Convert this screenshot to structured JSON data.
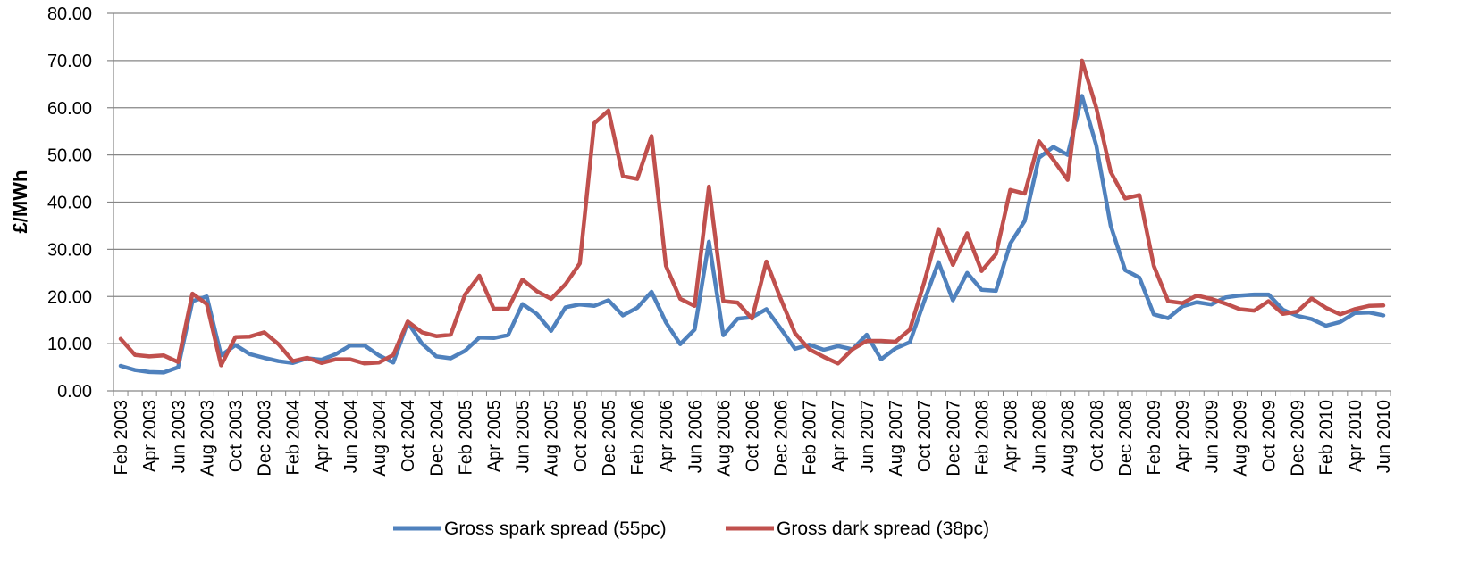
{
  "colors": {
    "spark": "#4f81bd",
    "dark": "#c0504d",
    "grid": "#868686",
    "axis": "#868686"
  },
  "chart_data": {
    "type": "line",
    "ylabel": "£/MWh",
    "ylim": [
      0,
      80
    ],
    "y_ticks": [
      "0.00",
      "10.00",
      "20.00",
      "30.00",
      "40.00",
      "50.00",
      "60.00",
      "70.00",
      "80.00"
    ],
    "grid": true,
    "legend_position": "bottom-center",
    "x_tick_labels": [
      "Feb 2003",
      "Apr 2003",
      "Jun 2003",
      "Aug 2003",
      "Oct 2003",
      "Dec 2003",
      "Feb 2004",
      "Apr 2004",
      "Jun 2004",
      "Aug 2004",
      "Oct 2004",
      "Dec 2004",
      "Feb 2005",
      "Apr 2005",
      "Jun 2005",
      "Aug 2005",
      "Oct 2005",
      "Dec 2005",
      "Feb 2006",
      "Apr 2006",
      "Jun 2006",
      "Aug 2006",
      "Oct 2006",
      "Dec 2006",
      "Feb 2007",
      "Apr 2007",
      "Jun 2007",
      "Aug 2007",
      "Oct 2007",
      "Dec 2007",
      "Feb 2008",
      "Apr 2008",
      "Jun 2008",
      "Aug 2008",
      "Oct 2008",
      "Dec 2008",
      "Feb 2009",
      "Apr 2009",
      "Jun 2009",
      "Aug 2009",
      "Oct 2009",
      "Dec 2009",
      "Feb 2010",
      "Apr 2010",
      "Jun 2010"
    ],
    "x": [
      "Feb 2003",
      "Mar 2003",
      "Apr 2003",
      "May 2003",
      "Jun 2003",
      "Jul 2003",
      "Aug 2003",
      "Sep 2003",
      "Oct 2003",
      "Nov 2003",
      "Dec 2003",
      "Jan 2004",
      "Feb 2004",
      "Mar 2004",
      "Apr 2004",
      "May 2004",
      "Jun 2004",
      "Jul 2004",
      "Aug 2004",
      "Sep 2004",
      "Oct 2004",
      "Nov 2004",
      "Dec 2004",
      "Jan 2005",
      "Feb 2005",
      "Mar 2005",
      "Apr 2005",
      "May 2005",
      "Jun 2005",
      "Jul 2005",
      "Aug 2005",
      "Sep 2005",
      "Oct 2005",
      "Nov 2005",
      "Dec 2005",
      "Jan 2006",
      "Feb 2006",
      "Mar 2006",
      "Apr 2006",
      "May 2006",
      "Jun 2006",
      "Jul 2006",
      "Aug 2006",
      "Sep 2006",
      "Oct 2006",
      "Nov 2006",
      "Dec 2006",
      "Jan 2007",
      "Feb 2007",
      "Mar 2007",
      "Apr 2007",
      "May 2007",
      "Jun 2007",
      "Jul 2007",
      "Aug 2007",
      "Sep 2007",
      "Oct 2007",
      "Nov 2007",
      "Dec 2007",
      "Jan 2008",
      "Feb 2008",
      "Mar 2008",
      "Apr 2008",
      "May 2008",
      "Jun 2008",
      "Jul 2008",
      "Aug 2008",
      "Sep 2008",
      "Oct 2008",
      "Nov 2008",
      "Dec 2008",
      "Jan 2009",
      "Feb 2009",
      "Mar 2009",
      "Apr 2009",
      "May 2009",
      "Jun 2009",
      "Jul 2009",
      "Aug 2009",
      "Sep 2009",
      "Oct 2009",
      "Nov 2009",
      "Dec 2009",
      "Jan 2010",
      "Feb 2010",
      "Mar 2010",
      "Apr 2010",
      "May 2010",
      "Jun 2010"
    ],
    "series": [
      {
        "name": "Gross spark spread (55pc)",
        "color": "#4f81bd",
        "values": [
          5.3,
          4.4,
          4.0,
          3.9,
          5.0,
          19.0,
          20.0,
          7.5,
          9.7,
          7.8,
          7.0,
          6.3,
          5.9,
          6.9,
          6.6,
          7.8,
          9.6,
          9.6,
          7.5,
          6.0,
          14.5,
          10.0,
          7.3,
          6.9,
          8.5,
          11.3,
          11.2,
          11.8,
          18.4,
          16.3,
          12.7,
          17.7,
          18.3,
          18.0,
          19.2,
          16.0,
          17.6,
          21.0,
          14.5,
          9.9,
          13.0,
          31.6,
          11.8,
          15.3,
          15.6,
          17.3,
          13.2,
          8.9,
          9.8,
          8.7,
          9.5,
          8.8,
          11.9,
          6.7,
          9.0,
          10.3,
          19.0,
          27.3,
          19.2,
          25.0,
          21.4,
          21.2,
          31.2,
          36.0,
          49.4,
          51.7,
          50.0,
          62.5,
          52.0,
          35.0,
          25.6,
          24.0,
          16.2,
          15.4,
          17.9,
          18.8,
          18.3,
          19.8,
          20.2,
          20.4,
          20.4,
          17.2,
          15.9,
          15.2,
          13.8,
          14.6,
          16.5,
          16.6,
          16.0
        ]
      },
      {
        "name": "Gross dark spread (38pc)",
        "color": "#c0504d",
        "values": [
          11.0,
          7.6,
          7.3,
          7.5,
          6.1,
          20.6,
          18.4,
          5.4,
          11.4,
          11.5,
          12.4,
          9.9,
          6.3,
          7.0,
          5.9,
          6.7,
          6.7,
          5.8,
          6.0,
          7.6,
          14.7,
          12.4,
          11.6,
          11.9,
          20.4,
          24.4,
          17.4,
          17.4,
          23.6,
          21.1,
          19.5,
          22.6,
          27.0,
          56.7,
          59.4,
          45.5,
          44.9,
          54.0,
          26.5,
          19.5,
          18.0,
          43.3,
          19.0,
          18.7,
          15.3,
          27.4,
          19.5,
          12.2,
          8.8,
          7.2,
          5.8,
          8.8,
          10.6,
          10.6,
          10.4,
          13.0,
          23.0,
          34.3,
          26.7,
          33.4,
          25.4,
          29.0,
          42.6,
          41.8,
          52.9,
          49.0,
          44.7,
          70.0,
          60.0,
          46.4,
          40.8,
          41.5,
          26.5,
          19.0,
          18.6,
          20.2,
          19.5,
          18.5,
          17.3,
          17.0,
          19.0,
          16.3,
          16.8,
          19.6,
          17.6,
          16.2,
          17.3,
          18.0,
          18.1
        ]
      }
    ]
  }
}
